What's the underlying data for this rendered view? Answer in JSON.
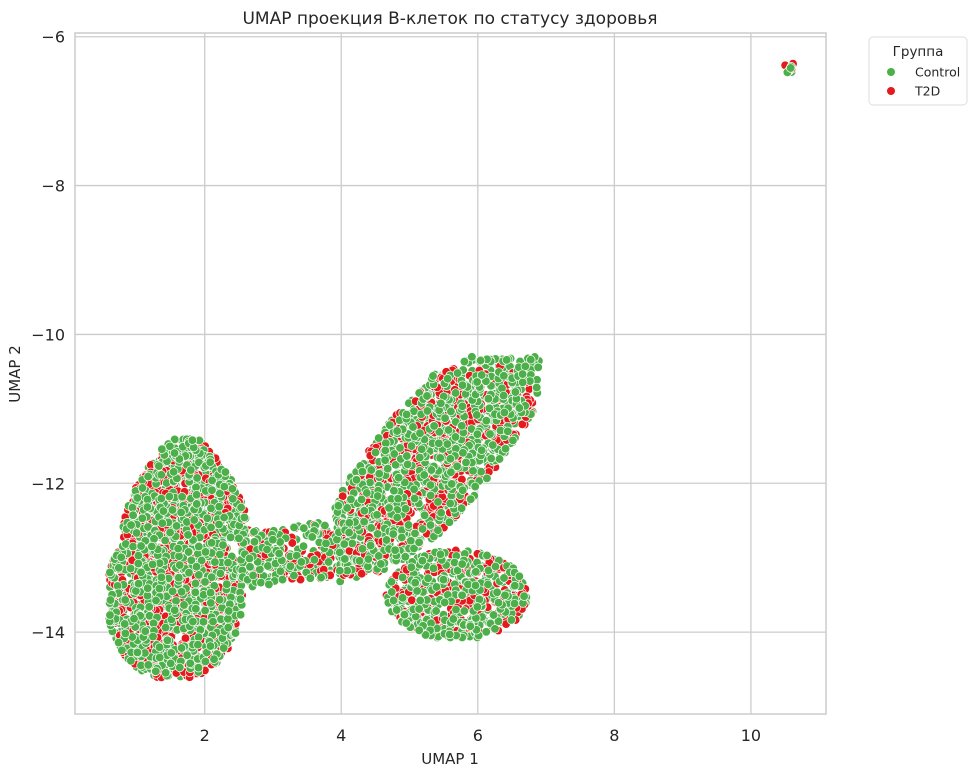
{
  "chart_data": {
    "type": "scatter",
    "title": "UMAP проекция B-клеток по статусу здоровья",
    "xlabel": "UMAP 1",
    "ylabel": "UMAP 2",
    "xlim": [
      0.1,
      11.1
    ],
    "ylim": [
      -15.1,
      -5.95
    ],
    "xticks": [
      2,
      4,
      6,
      8,
      10
    ],
    "yticks": [
      -6,
      -8,
      -10,
      -12,
      -14
    ],
    "xtick_labels": [
      "2",
      "4",
      "6",
      "8",
      "10"
    ],
    "ytick_labels": [
      "−6",
      "−8",
      "−10",
      "−12",
      "−14"
    ],
    "grid": true,
    "legend": {
      "title": "Группа",
      "placement": "outside-top-right"
    },
    "series": [
      {
        "name": "Control",
        "color": "#4daf4a",
        "clusters": [
          {
            "shape": "teardrop",
            "center": [
              1.6,
              -13.2
            ],
            "x_range": [
              0.6,
              2.75
            ],
            "y_range": [
              -14.6,
              -11.4
            ],
            "approx_points": 1400
          },
          {
            "shape": "bridge",
            "x_range": [
              2.5,
              4.2
            ],
            "y_range": [
              -13.4,
              -12.3
            ],
            "approx_points": 200
          },
          {
            "shape": "wing",
            "x_range": [
              3.8,
              6.9
            ],
            "y_range": [
              -14.1,
              -10.3
            ],
            "approx_points": 1500
          },
          {
            "shape": "small",
            "center": [
              10.58,
              -6.42
            ],
            "x_range": [
              10.5,
              10.65
            ],
            "y_range": [
              -6.5,
              -6.35
            ],
            "approx_points": 6
          }
        ]
      },
      {
        "name": "T2D",
        "color": "#e41a1c",
        "clusters": [
          {
            "shape": "teardrop",
            "center": [
              1.5,
              -13.4
            ],
            "x_range": [
              0.6,
              2.7
            ],
            "y_range": [
              -14.7,
              -11.5
            ],
            "approx_points": 700
          },
          {
            "shape": "bridge",
            "x_range": [
              2.6,
              4.0
            ],
            "y_range": [
              -13.3,
              -12.4
            ],
            "approx_points": 60
          },
          {
            "shape": "wing",
            "x_range": [
              4.0,
              6.8
            ],
            "y_range": [
              -14.0,
              -10.4
            ],
            "approx_points": 650
          },
          {
            "shape": "small",
            "center": [
              10.55,
              -6.4
            ],
            "x_range": [
              10.5,
              10.62
            ],
            "y_range": [
              -6.48,
              -6.35
            ],
            "approx_points": 4
          }
        ]
      }
    ]
  }
}
